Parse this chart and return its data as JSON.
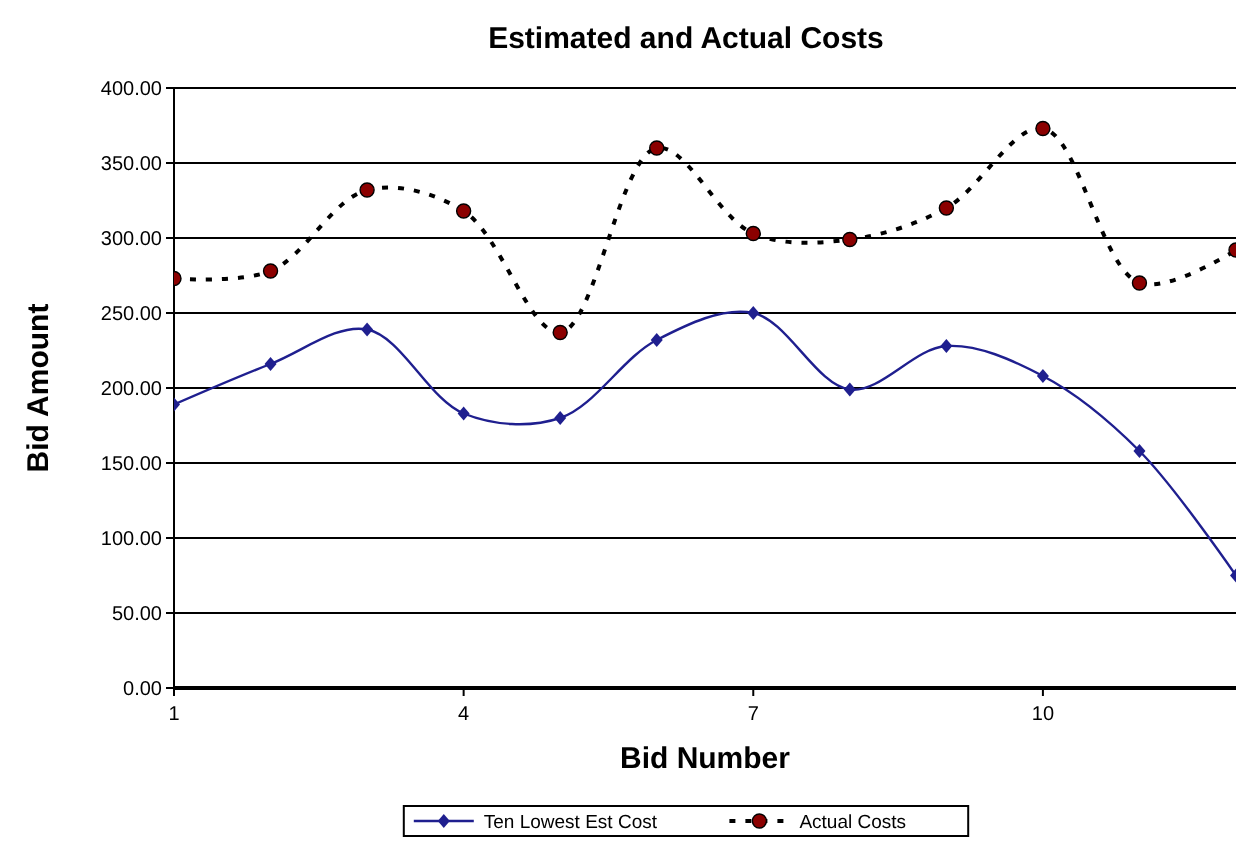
{
  "chart_data": {
    "type": "line",
    "title": "Estimated and Actual Costs",
    "xlabel": "Bid Number",
    "ylabel": "Bid Amount",
    "x": [
      1,
      2,
      3,
      4,
      5,
      6,
      7,
      8,
      9,
      10,
      11,
      12
    ],
    "xlim": [
      1,
      12
    ],
    "xticks": [
      1,
      4,
      7,
      10
    ],
    "ylim": [
      0,
      400
    ],
    "yticks": [
      {
        "value": 0,
        "label": "0.00"
      },
      {
        "value": 50,
        "label": "50.00"
      },
      {
        "value": 100,
        "label": "100.00"
      },
      {
        "value": 150,
        "label": "150.00"
      },
      {
        "value": 200,
        "label": "200.00"
      },
      {
        "value": 250,
        "label": "250.00"
      },
      {
        "value": 300,
        "label": "300.00"
      },
      {
        "value": 350,
        "label": "350.00"
      },
      {
        "value": 400,
        "label": "400.00"
      }
    ],
    "grid": "y",
    "legend": "bottom",
    "series": [
      {
        "name": "Ten Lowest Est Cost",
        "color": "#1f1f8f",
        "marker": "diamond",
        "line_style": "solid",
        "values": [
          189,
          216,
          239,
          183,
          180,
          232,
          250,
          199,
          228,
          208,
          158,
          75
        ]
      },
      {
        "name": "Actual Costs",
        "color": "#000000",
        "marker": "circle",
        "line_style": "dashed",
        "values": [
          273,
          278,
          332,
          318,
          237,
          360,
          303,
          299,
          320,
          373,
          270,
          292
        ]
      }
    ]
  }
}
